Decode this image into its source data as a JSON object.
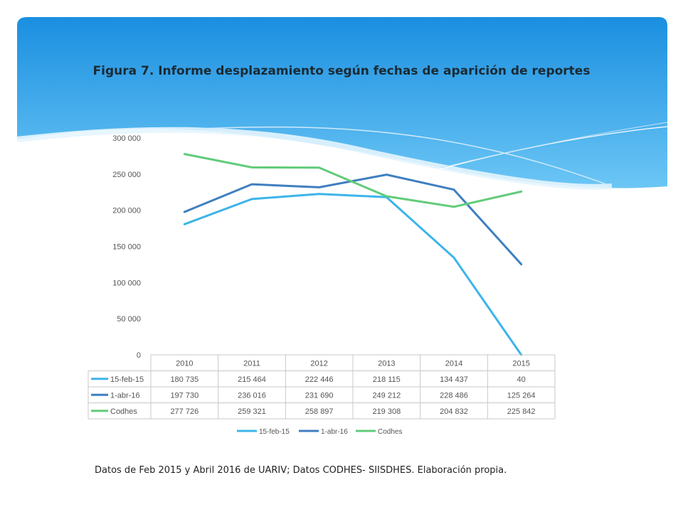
{
  "slide": {
    "title": "Figura 7. Informe desplazamiento según fechas de aparición de reportes",
    "source_note": "Datos de Feb 2015 y Abril 2016 de UARIV; Datos CODHES- SIISDHES.  Elaboración propia."
  },
  "chart_data": {
    "type": "line",
    "title": "Figura 7. Informe desplazamiento según fechas de aparición de reportes",
    "xlabel": "",
    "ylabel": "",
    "categories": [
      "2010",
      "2011",
      "2012",
      "2013",
      "2014",
      "2015"
    ],
    "ylim": [
      0,
      300000
    ],
    "y_ticks": [
      "0",
      "50 000",
      "100 000",
      "150 000",
      "200 000",
      "250 000",
      "300 000"
    ],
    "legend_position": "bottom",
    "data_table": true,
    "series": [
      {
        "name": "15-feb-15",
        "color": "#3db4ea",
        "values": [
          180735,
          215464,
          222446,
          218115,
          134437,
          40
        ],
        "labels": [
          "180 735",
          "215 464",
          "222 446",
          "218 115",
          "134 437",
          "40"
        ]
      },
      {
        "name": "1-abr-16",
        "color": "#3f7fc0",
        "values": [
          197730,
          236016,
          231690,
          249212,
          228486,
          125264
        ],
        "labels": [
          "197 730",
          "236 016",
          "231 690",
          "249 212",
          "228 486",
          "125 264"
        ]
      },
      {
        "name": "Codhes",
        "color": "#62cb7a",
        "values": [
          277726,
          259321,
          258897,
          219308,
          204832,
          225842
        ],
        "labels": [
          "277 726",
          "259 321",
          "258 897",
          "219 308",
          "204 832",
          "225 842"
        ]
      }
    ]
  }
}
